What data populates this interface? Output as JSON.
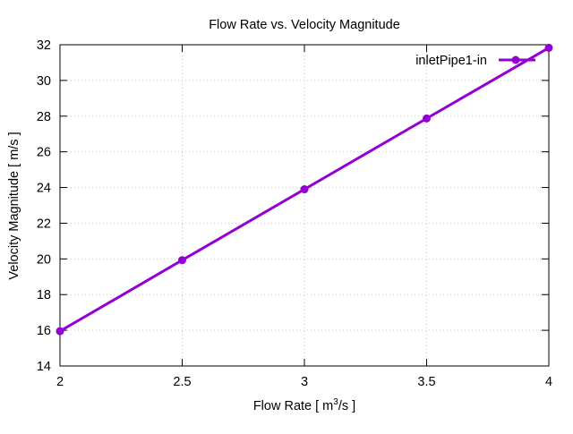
{
  "chart_data": {
    "type": "line",
    "title": "Flow Rate vs. Velocity Magnitude",
    "xlabel": {
      "prefix": "Flow Rate [ m",
      "sup": "3",
      "suffix": "/s ]"
    },
    "ylabel": "Velocity Magnitude [ m/s ]",
    "xlim": [
      2,
      4
    ],
    "ylim": [
      14,
      32
    ],
    "xticks": [
      {
        "value": 2,
        "label": "2"
      },
      {
        "value": 2.5,
        "label": "2.5"
      },
      {
        "value": 3,
        "label": "3"
      },
      {
        "value": 3.5,
        "label": "3.5"
      },
      {
        "value": 4,
        "label": "4"
      }
    ],
    "yticks": [
      {
        "value": 14,
        "label": "14"
      },
      {
        "value": 16,
        "label": "16"
      },
      {
        "value": 18,
        "label": "18"
      },
      {
        "value": 20,
        "label": "20"
      },
      {
        "value": 22,
        "label": "22"
      },
      {
        "value": 24,
        "label": "24"
      },
      {
        "value": 26,
        "label": "26"
      },
      {
        "value": 28,
        "label": "28"
      },
      {
        "value": 30,
        "label": "30"
      },
      {
        "value": 32,
        "label": "32"
      }
    ],
    "grid": true,
    "legend_position": "top-right",
    "series": [
      {
        "name": "inletPipe1-in",
        "color": "#9400d3",
        "x": [
          2,
          2.5,
          3,
          3.5,
          4
        ],
        "y": [
          15.95,
          19.93,
          23.9,
          27.87,
          31.83
        ]
      }
    ]
  }
}
